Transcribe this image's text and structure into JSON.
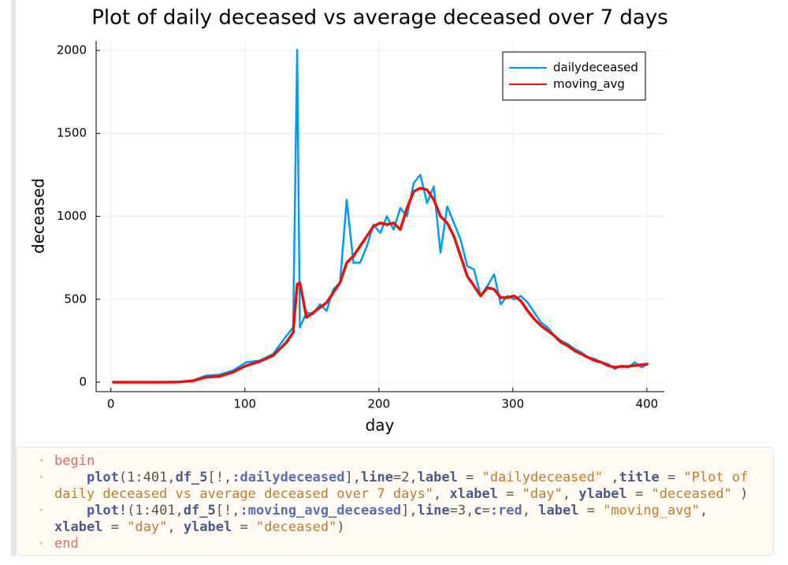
{
  "chart_data": {
    "type": "line",
    "title": "Plot of daily deceased vs average deceased over 7 days",
    "x_label": "day",
    "y_label": "deceased",
    "x": [
      1,
      11,
      21,
      31,
      41,
      51,
      61,
      71,
      81,
      91,
      101,
      111,
      121,
      131,
      136,
      139,
      141,
      146,
      151,
      156,
      161,
      166,
      171,
      176,
      181,
      186,
      191,
      196,
      201,
      206,
      211,
      216,
      221,
      226,
      231,
      236,
      241,
      246,
      251,
      256,
      261,
      266,
      271,
      276,
      281,
      286,
      291,
      296,
      301,
      306,
      311,
      316,
      321,
      326,
      331,
      336,
      341,
      346,
      351,
      356,
      361,
      366,
      371,
      376,
      381,
      386,
      391,
      396,
      401
    ],
    "series": [
      {
        "name": "dailydeceased",
        "color": "#009af9",
        "line_width": 2.5,
        "values": [
          0,
          0,
          0,
          0,
          0,
          2,
          10,
          40,
          45,
          70,
          120,
          130,
          170,
          280,
          330,
          2004,
          330,
          420,
          410,
          470,
          430,
          560,
          600,
          1100,
          720,
          720,
          820,
          950,
          900,
          1000,
          920,
          1050,
          1000,
          1200,
          1250,
          1080,
          1180,
          780,
          1060,
          960,
          860,
          700,
          680,
          520,
          580,
          650,
          470,
          520,
          500,
          520,
          480,
          420,
          360,
          330,
          280,
          250,
          230,
          200,
          180,
          150,
          140,
          120,
          110,
          80,
          100,
          90,
          120,
          90,
          110
        ]
      },
      {
        "name": "moving_avg",
        "color": "#e8120c",
        "line_width": 3.5,
        "values": [
          0,
          0,
          0,
          0,
          0,
          1,
          8,
          30,
          35,
          60,
          100,
          125,
          160,
          240,
          300,
          590,
          600,
          390,
          420,
          450,
          480,
          540,
          600,
          720,
          760,
          820,
          880,
          940,
          960,
          950,
          960,
          920,
          1050,
          1150,
          1170,
          1160,
          1100,
          1000,
          960,
          880,
          760,
          640,
          580,
          520,
          570,
          560,
          510,
          510,
          520,
          490,
          430,
          380,
          340,
          310,
          280,
          240,
          220,
          190,
          170,
          150,
          130,
          120,
          100,
          90,
          95,
          95,
          100,
          105,
          110
        ]
      }
    ],
    "xlim": [
      -11,
      413
    ],
    "ylim": [
      -57,
      2057
    ],
    "xticks": [
      0,
      100,
      200,
      300,
      400
    ],
    "yticks": [
      0,
      500,
      1000,
      1500,
      2000
    ],
    "grid": true,
    "legend": "top-right"
  },
  "code": {
    "lines": [
      [
        {
          "t": "begin",
          "s": "keyword"
        }
      ],
      [
        {
          "t": "    ",
          "s": "plain"
        },
        {
          "t": "plot",
          "s": "function"
        },
        {
          "t": "(1:401,",
          "s": "plain"
        },
        {
          "t": "df_5",
          "s": "param"
        },
        {
          "t": "[!,",
          "s": "plain"
        },
        {
          "t": ":dailydeceased",
          "s": "symbol"
        },
        {
          "t": "],",
          "s": "plain"
        },
        {
          "t": "line",
          "s": "param"
        },
        {
          "t": "=2,",
          "s": "plain"
        },
        {
          "t": "label",
          "s": "param"
        },
        {
          "t": " = ",
          "s": "plain"
        },
        {
          "t": "\"dailydeceased\"",
          "s": "string"
        },
        {
          "t": " ,",
          "s": "plain"
        },
        {
          "t": "title",
          "s": "param"
        },
        {
          "t": " = ",
          "s": "plain"
        },
        {
          "t": "\"Plot of daily deceased vs average deceased over 7 days\"",
          "s": "string"
        },
        {
          "t": ", ",
          "s": "plain"
        },
        {
          "t": "xlabel",
          "s": "param"
        },
        {
          "t": " = ",
          "s": "plain"
        },
        {
          "t": "\"day\"",
          "s": "string"
        },
        {
          "t": ", ",
          "s": "plain"
        },
        {
          "t": "ylabel",
          "s": "param"
        },
        {
          "t": " = ",
          "s": "plain"
        },
        {
          "t": "\"deceased\"",
          "s": "string"
        },
        {
          "t": " )",
          "s": "plain"
        }
      ],
      [
        {
          "t": "    ",
          "s": "plain"
        },
        {
          "t": "plot!",
          "s": "function"
        },
        {
          "t": "(1:401,",
          "s": "plain"
        },
        {
          "t": "df_5",
          "s": "param"
        },
        {
          "t": "[!,",
          "s": "plain"
        },
        {
          "t": ":moving_avg_deceased",
          "s": "symbol"
        },
        {
          "t": "],",
          "s": "plain"
        },
        {
          "t": "line",
          "s": "param"
        },
        {
          "t": "=3,",
          "s": "plain"
        },
        {
          "t": "c",
          "s": "param"
        },
        {
          "t": "=",
          "s": "plain"
        },
        {
          "t": ":red",
          "s": "symbol"
        },
        {
          "t": ", ",
          "s": "plain"
        },
        {
          "t": "label",
          "s": "param"
        },
        {
          "t": " = ",
          "s": "plain"
        },
        {
          "t": "\"moving_avg\"",
          "s": "string"
        },
        {
          "t": ", ",
          "s": "plain"
        },
        {
          "t": "xlabel",
          "s": "param"
        },
        {
          "t": " = ",
          "s": "plain"
        },
        {
          "t": "\"day\"",
          "s": "string"
        },
        {
          "t": ", ",
          "s": "plain"
        },
        {
          "t": "ylabel",
          "s": "param"
        },
        {
          "t": " = ",
          "s": "plain"
        },
        {
          "t": "\"deceased\"",
          "s": "string"
        },
        {
          "t": ")",
          "s": "plain"
        }
      ],
      [
        {
          "t": "end",
          "s": "keyword"
        }
      ]
    ]
  }
}
